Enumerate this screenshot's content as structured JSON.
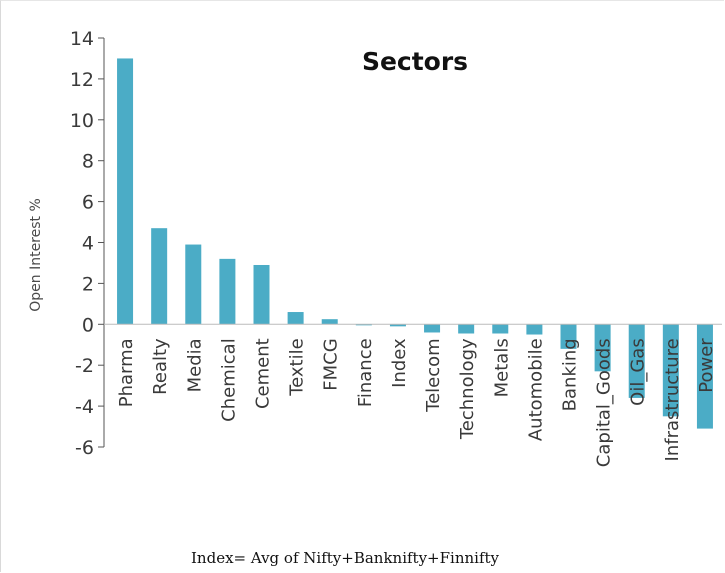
{
  "chart_data": {
    "type": "bar",
    "title": "Sectors",
    "ylabel": "Open Interest %",
    "xlabel": "",
    "ylim": [
      -6,
      14
    ],
    "yticks": [
      14,
      12,
      10,
      8,
      6,
      4,
      2,
      0,
      -2,
      -4,
      -6
    ],
    "categories": [
      "Pharma",
      "Realty",
      "Media",
      "Chemical",
      "Cement",
      "Textile",
      "FMCG",
      "Finance",
      "Index",
      "Telecom",
      "Technology",
      "Metals",
      "Automobile",
      "Banking",
      "Capital_Goods",
      "Oil_Gas",
      "Infrastructure",
      "Power"
    ],
    "values": [
      13.0,
      4.7,
      3.9,
      3.2,
      2.9,
      0.6,
      0.25,
      -0.05,
      -0.1,
      -0.4,
      -0.45,
      -0.45,
      -0.5,
      -1.2,
      -2.3,
      -3.6,
      -4.5,
      -5.1
    ],
    "grid": false,
    "bar_color": "#4bacc6"
  },
  "note": "Index= Avg of Nifty+Banknifty+Finnifty"
}
